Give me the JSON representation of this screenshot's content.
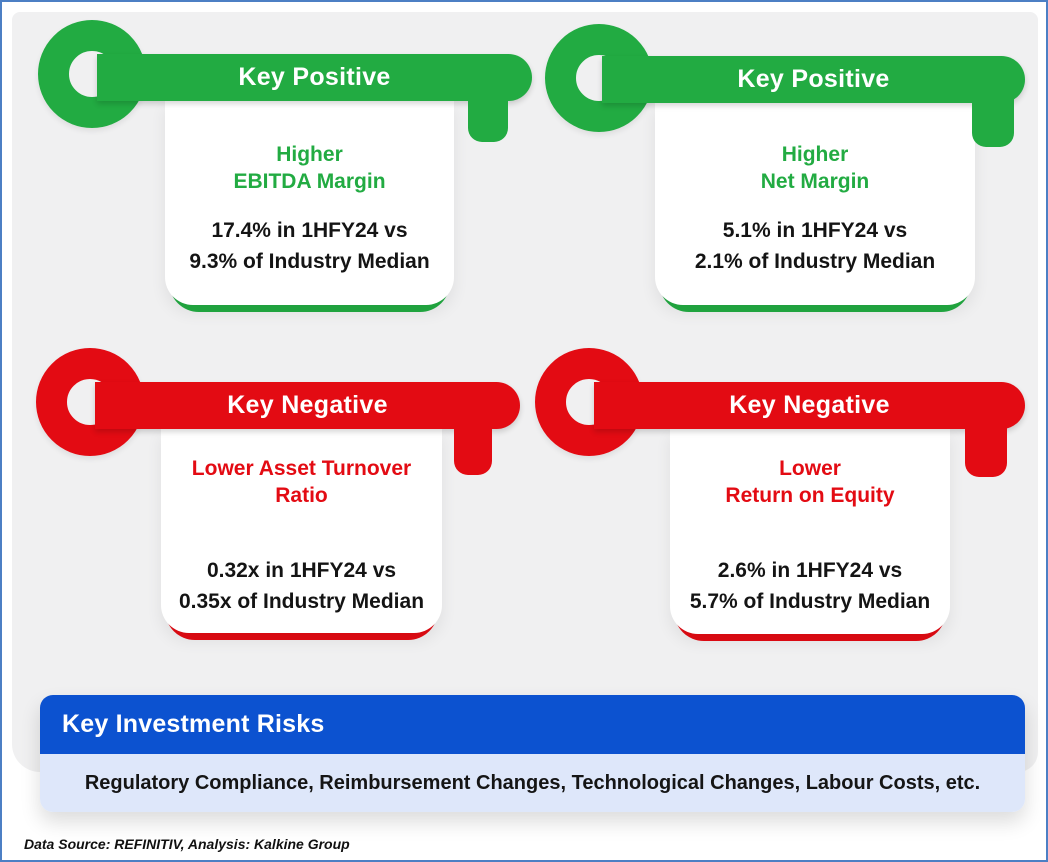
{
  "keys": [
    {
      "type": "positive",
      "banner": "Key Positive",
      "heading_line1": "Higher",
      "heading_line2": "EBITDA Margin",
      "value_line1": "17.4% in 1HFY24 vs",
      "value_line2": "9.3% of Industry Median"
    },
    {
      "type": "positive",
      "banner": "Key Positive",
      "heading_line1": "Higher",
      "heading_line2": "Net Margin",
      "value_line1": "5.1% in 1HFY24 vs",
      "value_line2": "2.1% of Industry Median"
    },
    {
      "type": "negative",
      "banner": "Key Negative",
      "heading_line1": "Lower Asset Turnover",
      "heading_line2": "Ratio",
      "value_line1": "0.32x in 1HFY24 vs",
      "value_line2": "0.35x of Industry Median"
    },
    {
      "type": "negative",
      "banner": "Key Negative",
      "heading_line1": "Lower",
      "heading_line2": "Return on Equity",
      "value_line1": "2.6% in 1HFY24 vs",
      "value_line2": "5.7% of Industry Median"
    }
  ],
  "risks": {
    "title": "Key Investment Risks",
    "items": "Regulatory Compliance, Reimbursement Changes, Technological Changes, Labour Costs, etc."
  },
  "footer": {
    "source_note": "Data Source: REFINITIV, Analysis: Kalkine Group"
  },
  "colors": {
    "positive_green": "#22AB42",
    "negative_red": "#E30B13",
    "banner_blue": "#0C52D0",
    "panel_light_blue": "#DEE7FA",
    "background_gray": "#F0F0F1",
    "frame_blue": "#4C7FC4"
  }
}
